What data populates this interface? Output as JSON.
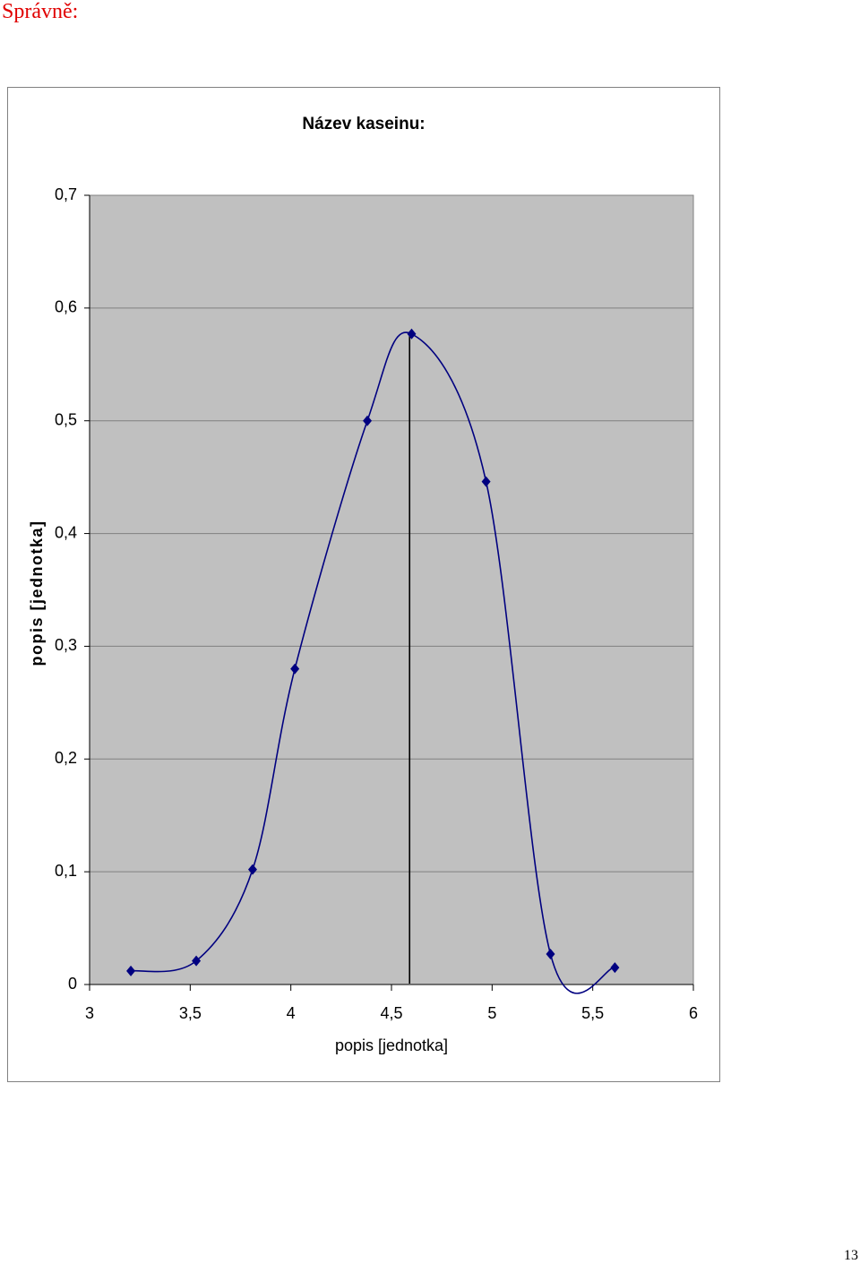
{
  "heading": "Správně:",
  "page_number": "13",
  "chart_data": {
    "type": "scatter",
    "title": "Název kaseinu:",
    "x_label": "popis [jednotka]",
    "y_label": "popis [jednotka]",
    "smooth": true,
    "grid": true,
    "series": [
      {
        "color": "#000080",
        "x": [
          3.205,
          3.53,
          3.81,
          4.02,
          4.38,
          4.6,
          4.97,
          5.29,
          5.61
        ],
        "values": [
          0.012,
          0.021,
          0.102,
          0.28,
          0.5,
          0.577,
          0.446,
          0.027,
          0.015
        ]
      }
    ],
    "reference_line_x": 4.59,
    "xlim": [
      3,
      6
    ],
    "xticks": [
      3,
      {
        "value": 3.5,
        "label": "3,5"
      },
      4,
      {
        "value": 4.5,
        "label": "4,5"
      },
      5,
      {
        "value": 5.5,
        "label": "5,5"
      },
      6
    ],
    "ylim": [
      0,
      0.7
    ],
    "yticks": [
      0,
      {
        "value": 0.1,
        "label": "0,1"
      },
      {
        "value": 0.2,
        "label": "0,2"
      },
      {
        "value": 0.3,
        "label": "0,3"
      },
      {
        "value": 0.4,
        "label": "0,4"
      },
      {
        "value": 0.5,
        "label": "0,5"
      },
      {
        "value": 0.6,
        "label": "0,6"
      },
      {
        "value": 0.7,
        "label": "0,7"
      }
    ]
  }
}
